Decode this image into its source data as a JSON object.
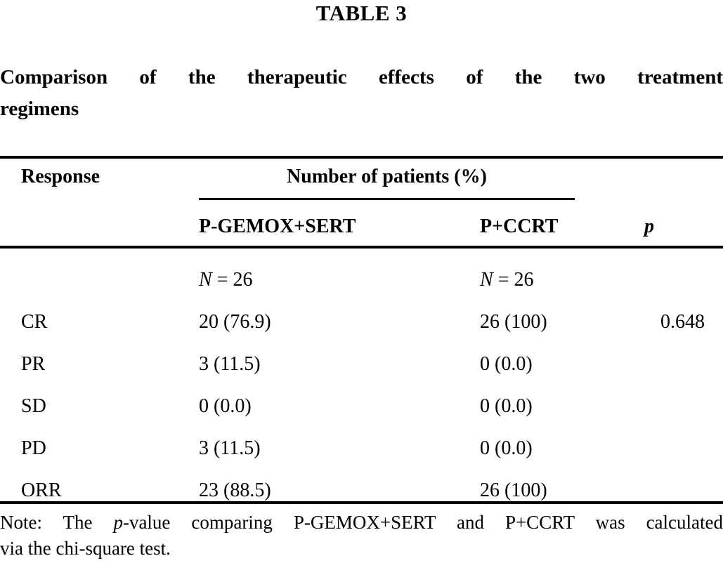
{
  "page": {
    "background_color": "#ffffff",
    "text_color": "#000000"
  },
  "title": "TABLE 3",
  "caption": {
    "line1": "Comparison of the therapeutic effects of the two treatment",
    "line2": "regimens"
  },
  "table": {
    "response_header": "Response",
    "spanner_header": "Number of patients (%)",
    "group_headers": {
      "col1": "P-GEMOX+SERT",
      "col2": "P+CCRT",
      "p": "p"
    },
    "n_row": {
      "italic": "N",
      "rest": " = 26"
    },
    "rows": [
      {
        "response": "CR",
        "col1": "20 (76.9)",
        "col2": "26 (100)",
        "p": "0.648"
      },
      {
        "response": "PR",
        "col1": "3 (11.5)",
        "col2": "0 (0.0)",
        "p": ""
      },
      {
        "response": "SD",
        "col1": "0 (0.0)",
        "col2": "0 (0.0)",
        "p": ""
      },
      {
        "response": "PD",
        "col1": "3 (11.5)",
        "col2": "0 (0.0)",
        "p": ""
      },
      {
        "response": "ORR",
        "col1": "23 (88.5)",
        "col2": "26 (100)",
        "p": ""
      }
    ]
  },
  "note": {
    "prefix": "Note: The ",
    "italic_p": "p",
    "line1_rest": "-value comparing P-GEMOX+SERT and P+CCRT was calculated",
    "line2": "via the chi-square test."
  }
}
